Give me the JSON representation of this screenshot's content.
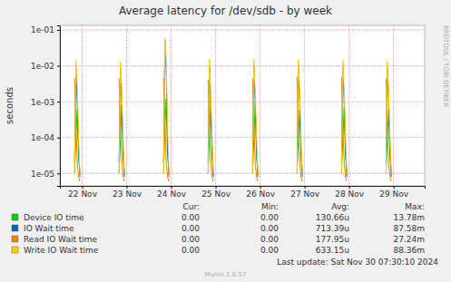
{
  "chart_data": {
    "type": "line",
    "title": "Average latency for /dev/sdb - by week",
    "ylabel": "seconds",
    "log": "y",
    "grid": true,
    "xlim": [
      0,
      8.2
    ],
    "ylim": [
      4.5e-06,
      0.134
    ],
    "xticks": [
      {
        "value": 0.5,
        "label": "22 Nov"
      },
      {
        "value": 1.5,
        "label": "23 Nov"
      },
      {
        "value": 2.5,
        "label": "24 Nov"
      },
      {
        "value": 3.5,
        "label": "25 Nov"
      },
      {
        "value": 4.5,
        "label": "26 Nov"
      },
      {
        "value": 5.5,
        "label": "27 Nov"
      },
      {
        "value": 6.5,
        "label": "28 Nov"
      },
      {
        "value": 7.5,
        "label": "29 Nov"
      }
    ],
    "yticks": [
      {
        "value": 1e-05,
        "label": "1e-05"
      },
      {
        "value": 0.0001,
        "label": "1e-04"
      },
      {
        "value": 0.001,
        "label": "1e-03"
      },
      {
        "value": 0.01,
        "label": "1e-02"
      },
      {
        "value": 0.1,
        "label": "1e-01"
      }
    ],
    "x": [
      0.33,
      0.36,
      0.39,
      0.42,
      0.45,
      0.6,
      1.33,
      1.36,
      1.39,
      1.42,
      1.45,
      1.6,
      2.33,
      2.36,
      2.39,
      2.42,
      2.45,
      2.6,
      3.33,
      3.36,
      3.39,
      3.42,
      3.45,
      3.6,
      4.33,
      4.36,
      4.39,
      4.42,
      4.45,
      4.6,
      5.33,
      5.36,
      5.39,
      5.42,
      5.45,
      5.6,
      6.33,
      6.36,
      6.39,
      6.42,
      6.45,
      6.6,
      7.33,
      7.36,
      7.39,
      7.42,
      7.45,
      7.6
    ],
    "stats_headers": [
      "Cur:",
      "Min:",
      "Avg:",
      "Max:"
    ],
    "series": [
      {
        "name": "Device IO time",
        "color": "#00cc00",
        "stats": [
          "0.00",
          "0.00",
          "130.66u",
          "13.78m"
        ],
        "values": [
          1e-05,
          0.0001,
          0.0006,
          3e-05,
          1e-05,
          null,
          1e-05,
          0.0001,
          0.0008,
          3e-05,
          1e-05,
          null,
          1e-05,
          0.0002,
          0.0012,
          4e-05,
          1e-05,
          null,
          1e-05,
          0.0001,
          0.0011,
          3e-05,
          1e-05,
          null,
          1e-05,
          0.0001,
          0.0009,
          3e-05,
          1e-05,
          null,
          1e-05,
          0.0001,
          0.0006,
          3e-05,
          1e-05,
          null,
          1e-05,
          0.0001,
          0.0007,
          3e-05,
          1e-05,
          null,
          1e-05,
          0.0001,
          0.0006,
          3e-05,
          1e-05,
          null
        ]
      },
      {
        "name": "IO Wait time",
        "color": "#0066b3",
        "stats": [
          "0.00",
          "0.00",
          "713.39u",
          "87.58m"
        ],
        "values": [
          2e-05,
          0.009,
          0.001,
          5e-05,
          8e-06,
          null,
          2e-05,
          0.009,
          0.001,
          5e-05,
          8e-06,
          null,
          2e-05,
          0.05,
          0.008,
          5e-05,
          8e-06,
          null,
          2e-05,
          0.01,
          0.001,
          5e-05,
          8e-06,
          null,
          2e-05,
          0.01,
          0.001,
          5e-05,
          8e-06,
          null,
          2e-05,
          0.01,
          0.001,
          5e-05,
          8e-06,
          null,
          2e-05,
          0.009,
          0.001,
          5e-05,
          8e-06,
          null,
          2e-05,
          0.009,
          0.001,
          5e-05,
          8e-06,
          null
        ]
      },
      {
        "name": "Read IO Wait time",
        "color": "#ff8000",
        "stats": [
          "0.00",
          "0.00",
          "177.95u",
          "27.24m"
        ],
        "values": [
          0.0045,
          0.0002,
          2e-05,
          8e-06,
          6e-06,
          null,
          0.0045,
          0.0002,
          2e-05,
          8e-06,
          6e-06,
          null,
          0.0045,
          0.0003,
          2e-05,
          8e-06,
          6e-06,
          null,
          0.0042,
          0.0002,
          2e-05,
          8e-06,
          6e-06,
          null,
          0.0045,
          0.0002,
          2e-05,
          8e-06,
          6e-06,
          null,
          0.005,
          0.0002,
          2e-05,
          8e-06,
          6e-06,
          null,
          0.0048,
          0.0002,
          2e-05,
          8e-06,
          6e-06,
          null,
          0.0045,
          0.0002,
          2e-05,
          8e-06,
          6e-06,
          null
        ]
      },
      {
        "name": "Write IO Wait time",
        "color": "#ffcc00",
        "stats": [
          "0.00",
          "0.00",
          "633.15u",
          "88.36m"
        ],
        "values": [
          1e-05,
          0.014,
          0.003,
          0.0001,
          1e-05,
          null,
          1e-05,
          0.013,
          0.002,
          0.0001,
          1e-05,
          null,
          1e-05,
          0.06,
          0.013,
          0.0002,
          1e-05,
          null,
          1e-05,
          0.015,
          0.0015,
          0.0001,
          1e-05,
          null,
          1e-05,
          0.015,
          0.002,
          0.0001,
          1e-05,
          null,
          1e-05,
          0.015,
          0.002,
          0.0001,
          1e-05,
          null,
          1e-05,
          0.014,
          0.002,
          0.0001,
          1e-05,
          null,
          1e-05,
          0.013,
          0.002,
          0.0001,
          1e-05,
          null
        ]
      }
    ],
    "footer": "Last update: Sat Nov 30 07:30:10 2024",
    "annotations": [
      "Munin 2.0.57",
      "RRDTOOL / TOBI OETIKER"
    ]
  }
}
